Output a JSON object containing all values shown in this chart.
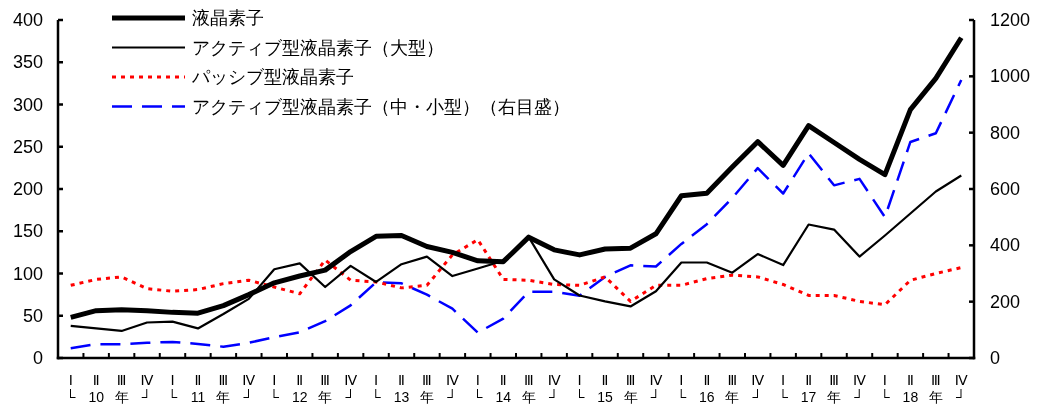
{
  "chart_data": {
    "type": "line",
    "categories": [
      "Ⅰ\n└",
      "Ⅱ\n10",
      "Ⅲ\n年",
      "Ⅳ\n┘",
      "Ⅰ\n└",
      "Ⅱ\n11",
      "Ⅲ\n年",
      "Ⅳ\n┘",
      "Ⅰ\n└",
      "Ⅱ\n12",
      "Ⅲ\n年",
      "Ⅳ\n┘",
      "Ⅰ\n└",
      "Ⅱ\n13",
      "Ⅲ\n年",
      "Ⅳ\n┘",
      "Ⅰ\n└",
      "Ⅱ\n14",
      "Ⅲ\n年",
      "Ⅳ\n┘",
      "Ⅰ\n└",
      "Ⅱ\n15",
      "Ⅲ\n年",
      "Ⅳ\n┘",
      "Ⅰ\n└",
      "Ⅱ\n16",
      "Ⅲ\n年",
      "Ⅳ\n┘",
      "Ⅰ\n└",
      "Ⅱ\n17",
      "Ⅲ\n年",
      "Ⅳ\n┘",
      "Ⅰ\n└",
      "Ⅱ\n18",
      "Ⅲ\n年",
      "Ⅳ\n┘"
    ],
    "series": [
      {
        "name": "液晶素子",
        "color": "#000000",
        "line_style": "solid",
        "values": [
          48,
          56,
          57,
          56,
          54,
          53,
          62,
          75,
          89,
          97,
          104,
          126,
          144,
          145,
          132,
          125,
          115,
          114,
          143,
          128,
          122,
          129,
          130,
          147,
          192,
          195,
          226,
          256,
          228,
          275,
          255,
          235,
          217,
          294,
          331,
          379
        ]
      },
      {
        "name": "アクティブ型液晶素子（大型）",
        "color": "#000000",
        "line_style": "solid",
        "values": [
          38,
          35,
          32,
          42,
          43,
          35,
          52,
          70,
          105,
          112,
          84,
          109,
          90,
          111,
          120,
          97,
          106,
          115,
          143,
          93,
          74,
          67,
          61,
          79,
          113,
          113,
          101,
          123,
          110,
          158,
          152,
          120,
          145,
          171,
          197,
          216
        ]
      },
      {
        "name": "パッシブ型液晶素子",
        "color": "#ff0000",
        "line_style": "dotted",
        "values": [
          86,
          93,
          96,
          82,
          79,
          81,
          88,
          92,
          84,
          76,
          116,
          92,
          90,
          83,
          86,
          122,
          140,
          93,
          92,
          87,
          86,
          96,
          67,
          86,
          86,
          94,
          98,
          96,
          87,
          74,
          74,
          67,
          63,
          92,
          100,
          107
        ]
      },
      {
        "name": "アクティブ型液晶素子（中・小型）（右目盛）",
        "color": "#0000ff",
        "line_style": "dashed",
        "axis": "y2",
        "values": [
          35,
          49,
          49,
          54,
          57,
          50,
          40,
          54,
          74,
          91,
          131,
          187,
          269,
          265,
          225,
          175,
          90,
          140,
          235,
          235,
          221,
          288,
          329,
          325,
          405,
          475,
          568,
          674,
          584,
          727,
          613,
          636,
          500,
          767,
          798,
          987
        ]
      }
    ],
    "ylim": [
      0,
      400
    ],
    "yticks": [
      0,
      50,
      100,
      150,
      200,
      250,
      300,
      350,
      400
    ],
    "y2lim": [
      0,
      1200
    ],
    "y2ticks": [
      0,
      200,
      400,
      600,
      800,
      1000,
      1200
    ],
    "legend": "top left"
  }
}
